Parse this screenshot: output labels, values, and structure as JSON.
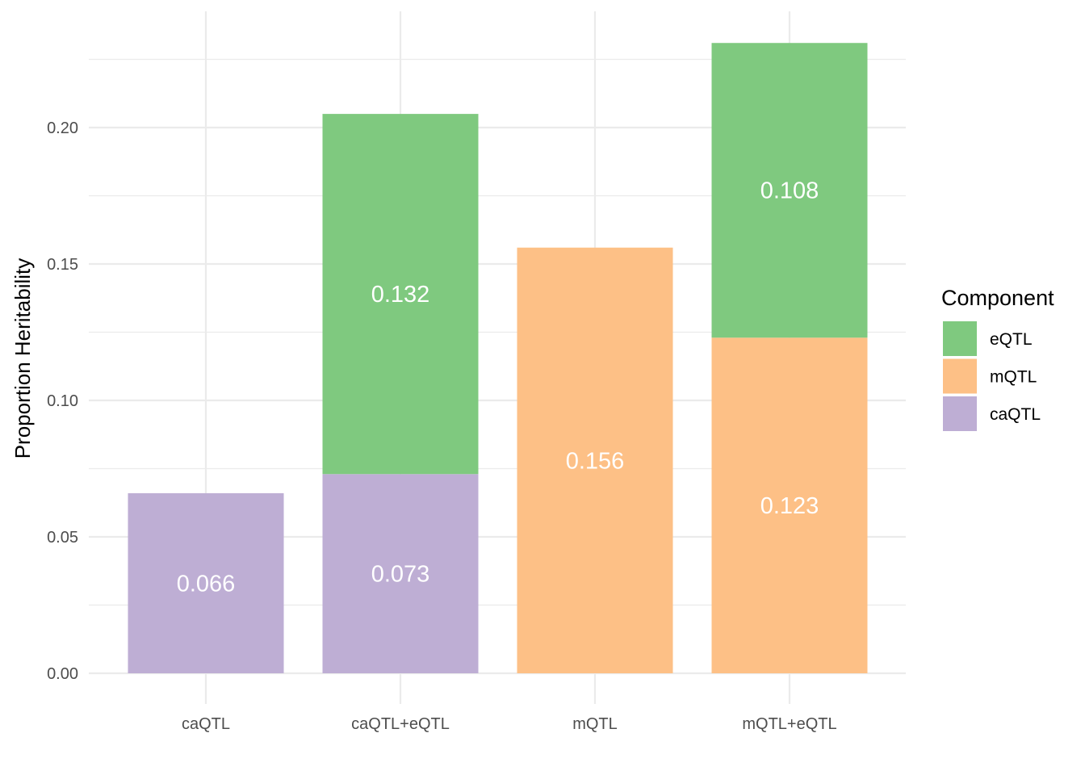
{
  "chart_data": {
    "type": "bar",
    "stacked": true,
    "categories": [
      "caQTL",
      "caQTL+eQTL",
      "mQTL",
      "mQTL+eQTL"
    ],
    "series": [
      {
        "name": "caQTL",
        "color": "#BEAED4",
        "values": [
          0.066,
          0.073,
          0,
          0
        ]
      },
      {
        "name": "mQTL",
        "color": "#FDC086",
        "values": [
          0,
          0,
          0.156,
          0.123
        ]
      },
      {
        "name": "eQTL",
        "color": "#7FC97F",
        "values": [
          0,
          0.132,
          0,
          0.108
        ]
      }
    ],
    "data_labels": [
      [
        "0.066",
        "",
        "",
        ""
      ],
      [
        "0.073",
        "",
        "0.132",
        ""
      ],
      [
        "",
        "0.156",
        "",
        ""
      ],
      [
        "",
        "0.123",
        "0.108",
        ""
      ]
    ],
    "xlabel": "",
    "ylabel": "Proportion Heritability",
    "ylim": [
      0,
      0.242
    ],
    "yticks": [
      0.0,
      0.05,
      0.1,
      0.15,
      0.2
    ],
    "ytick_labels": [
      "0.00",
      "0.05",
      "0.10",
      "0.15",
      "0.20"
    ],
    "grid": true,
    "legend": {
      "title": "Component",
      "position": "right",
      "entries": [
        {
          "label": "eQTL",
          "color": "#7FC97F"
        },
        {
          "label": "mQTL",
          "color": "#FDC086"
        },
        {
          "label": "caQTL",
          "color": "#BEAED4"
        }
      ]
    }
  }
}
